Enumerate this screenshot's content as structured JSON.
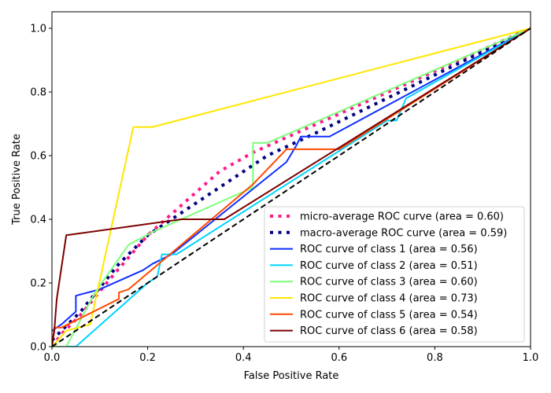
{
  "chart_data": {
    "type": "line",
    "title": "",
    "xlabel": "False Positive Rate",
    "ylabel": "True Positive Rate",
    "xlim": [
      0.0,
      1.0
    ],
    "ylim": [
      0.0,
      1.05
    ],
    "xticks": [
      "0.0",
      "0.2",
      "0.4",
      "0.6",
      "0.8",
      "1.0"
    ],
    "yticks": [
      "0.0",
      "0.2",
      "0.4",
      "0.6",
      "0.8",
      "1.0"
    ],
    "grid": false,
    "legend_position": "lower-right",
    "series": [
      {
        "name": "micro-average ROC curve (area = 0.60)",
        "color": "#ff1a8c",
        "style": "dotted",
        "x": [
          0,
          0.02,
          0.06,
          0.12,
          0.2,
          0.35,
          0.42,
          1.0
        ],
        "y": [
          0,
          0.04,
          0.1,
          0.21,
          0.35,
          0.55,
          0.61,
          1.0
        ]
      },
      {
        "name": "macro-average ROC curve (area = 0.59)",
        "color": "#000080",
        "style": "dotted",
        "x": [
          0,
          0.06,
          0.14,
          0.2,
          0.35,
          0.45,
          0.55,
          1.0
        ],
        "y": [
          0.02,
          0.11,
          0.26,
          0.35,
          0.5,
          0.6,
          0.67,
          1.0
        ]
      },
      {
        "name": "ROC curve of class 1 (area = 0.56)",
        "color": "#0f2fff",
        "style": "solid",
        "x": [
          0,
          0.02,
          0.05,
          0.05,
          0.1,
          0.19,
          0.21,
          0.25,
          0.49,
          0.51,
          0.52,
          0.58,
          1.0
        ],
        "y": [
          0.05,
          0.07,
          0.11,
          0.16,
          0.18,
          0.24,
          0.26,
          0.29,
          0.58,
          0.63,
          0.66,
          0.66,
          1.0
        ]
      },
      {
        "name": "ROC curve of class 2 (area = 0.51)",
        "color": "#00d4ff",
        "style": "solid",
        "x": [
          0,
          0.05,
          0.2,
          0.22,
          0.23,
          0.26,
          0.7,
          0.72,
          0.74,
          1.0
        ],
        "y": [
          0,
          0,
          0.2,
          0.22,
          0.29,
          0.29,
          0.71,
          0.71,
          0.78,
          1.0
        ]
      },
      {
        "name": "ROC curve of class 3 (area = 0.60)",
        "color": "#7dff7a",
        "style": "solid",
        "x": [
          0,
          0.03,
          0.09,
          0.16,
          0.21,
          0.42,
          0.42,
          0.45,
          1.0
        ],
        "y": [
          0,
          0,
          0.17,
          0.32,
          0.36,
          0.5,
          0.64,
          0.64,
          1.0
        ]
      },
      {
        "name": "ROC curve of class 4 (area = 0.73)",
        "color": "#ffe600",
        "style": "solid",
        "x": [
          0,
          0.03,
          0.08,
          0.17,
          0.21,
          1.0
        ],
        "y": [
          0,
          0.05,
          0.07,
          0.69,
          0.69,
          1.0
        ]
      },
      {
        "name": "ROC curve of class 5 (area = 0.54)",
        "color": "#ff4a00",
        "style": "solid",
        "x": [
          0,
          0.005,
          0.02,
          0.14,
          0.14,
          0.16,
          0.42,
          0.49,
          0.6,
          1.0
        ],
        "y": [
          0,
          0.06,
          0.06,
          0.15,
          0.17,
          0.18,
          0.51,
          0.62,
          0.62,
          1.0
        ]
      },
      {
        "name": "ROC curve of class 6 (area = 0.58)",
        "color": "#7f0000",
        "style": "solid",
        "x": [
          0,
          0.005,
          0.01,
          0.03,
          0.27,
          0.36,
          1.0
        ],
        "y": [
          0,
          0.05,
          0.15,
          0.35,
          0.4,
          0.4,
          1.0
        ]
      }
    ],
    "reference_line": {
      "name": "chance",
      "color": "#000000",
      "style": "dashed",
      "x": [
        0,
        1
      ],
      "y": [
        0,
        1
      ]
    }
  }
}
